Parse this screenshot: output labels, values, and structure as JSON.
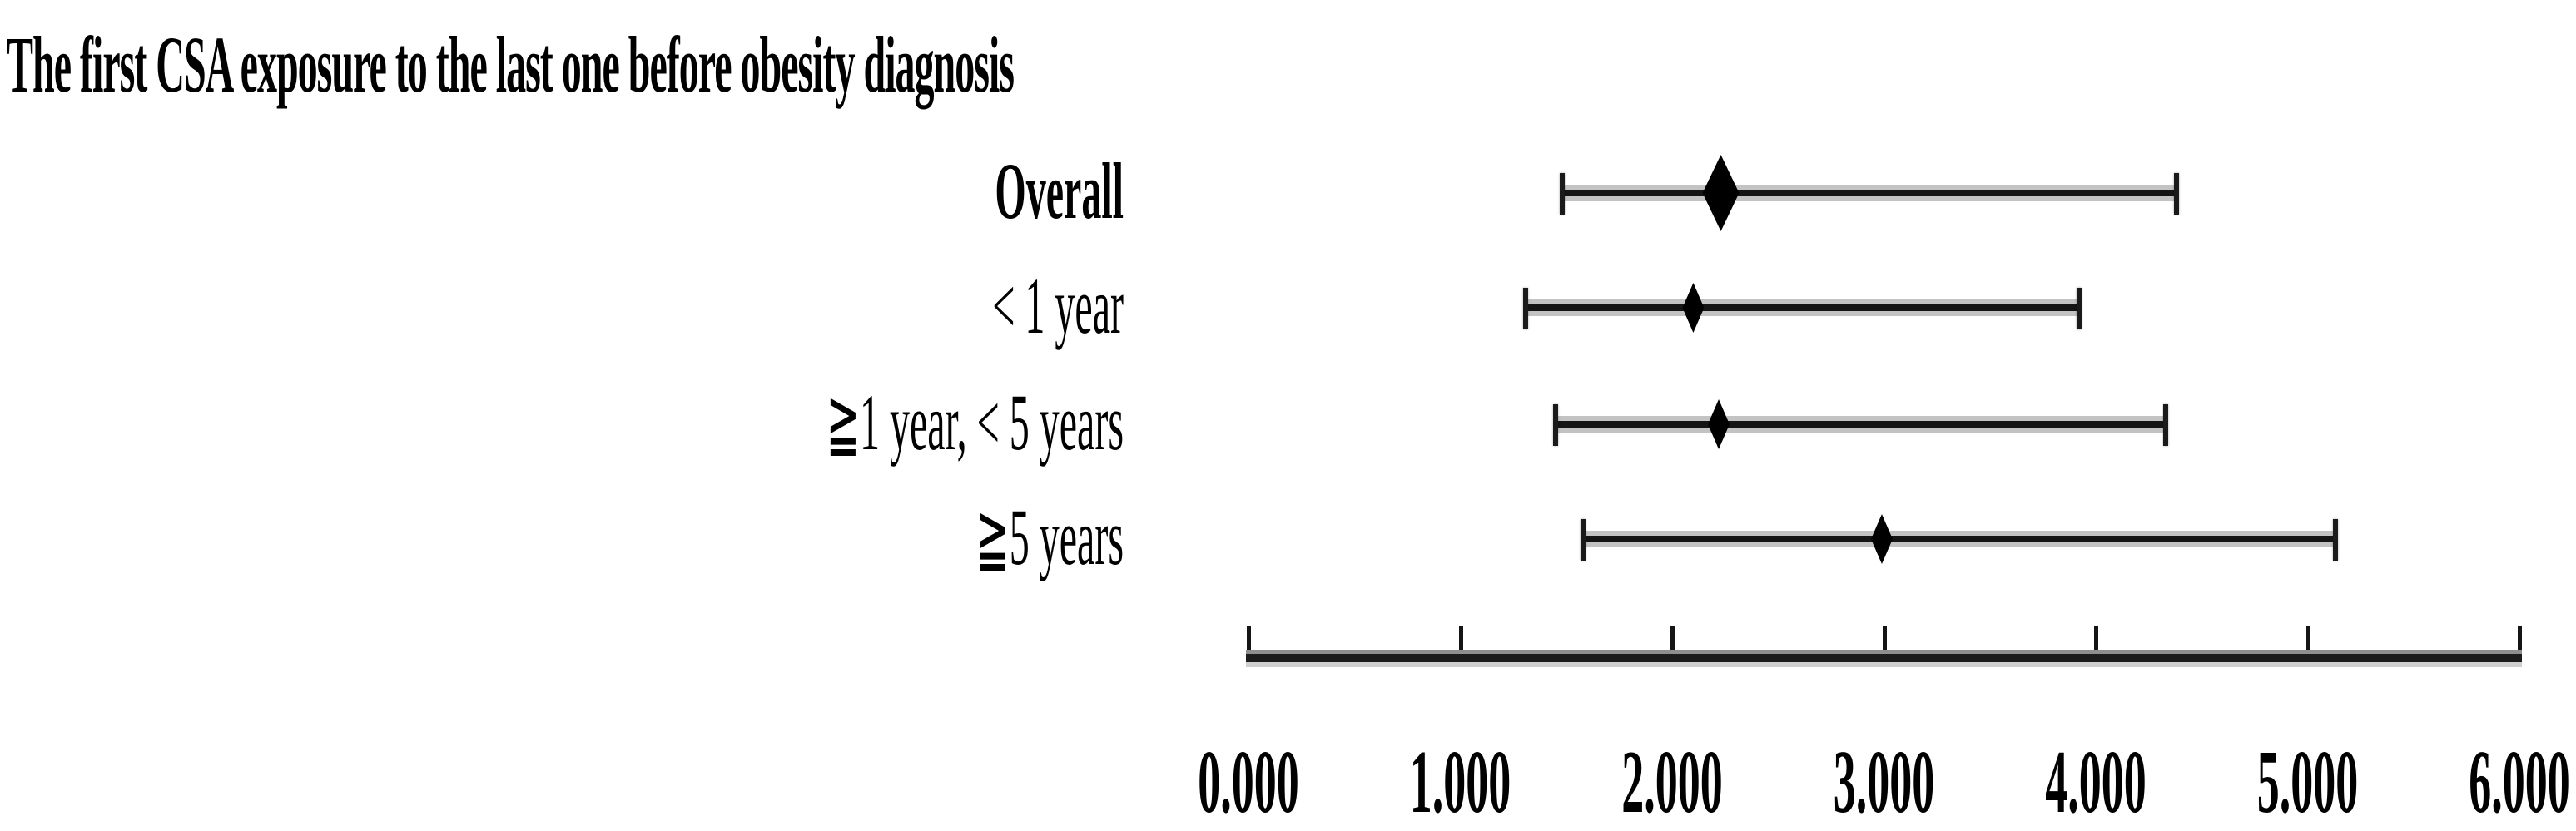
{
  "title": "The first CSA exposure to the last one before obesity diagnosis",
  "chart_data": {
    "type": "forest",
    "title": "The first CSA exposure to the last one before obesity diagnosis",
    "xlabel": "",
    "ylabel": "",
    "xlim": [
      0.0,
      6.0
    ],
    "grid": false,
    "legend": "none",
    "x_ticks": [
      "0.000",
      "1.000",
      "2.000",
      "3.000",
      "4.000",
      "5.000",
      "6.000"
    ],
    "x_tick_values": [
      0,
      1,
      2,
      3,
      4,
      5,
      6
    ],
    "marker_shape": "diamond",
    "line_color": "#000000",
    "marker_color": "#000000",
    "rows": [
      {
        "label": "Overall",
        "bold": true,
        "estimate": 2.23,
        "ci_low": 1.48,
        "ci_high": 4.38,
        "marker": "large"
      },
      {
        "label": "< 1 year",
        "bold": false,
        "estimate": 2.1,
        "ci_low": 1.31,
        "ci_high": 3.92,
        "marker": "small"
      },
      {
        "label": "≧1 year, < 5 years",
        "bold": false,
        "estimate": 2.22,
        "ci_low": 1.45,
        "ci_high": 4.33,
        "marker": "small"
      },
      {
        "label": "≧5 years",
        "bold": false,
        "estimate": 2.99,
        "ci_low": 1.58,
        "ci_high": 5.13,
        "marker": "small"
      }
    ]
  }
}
